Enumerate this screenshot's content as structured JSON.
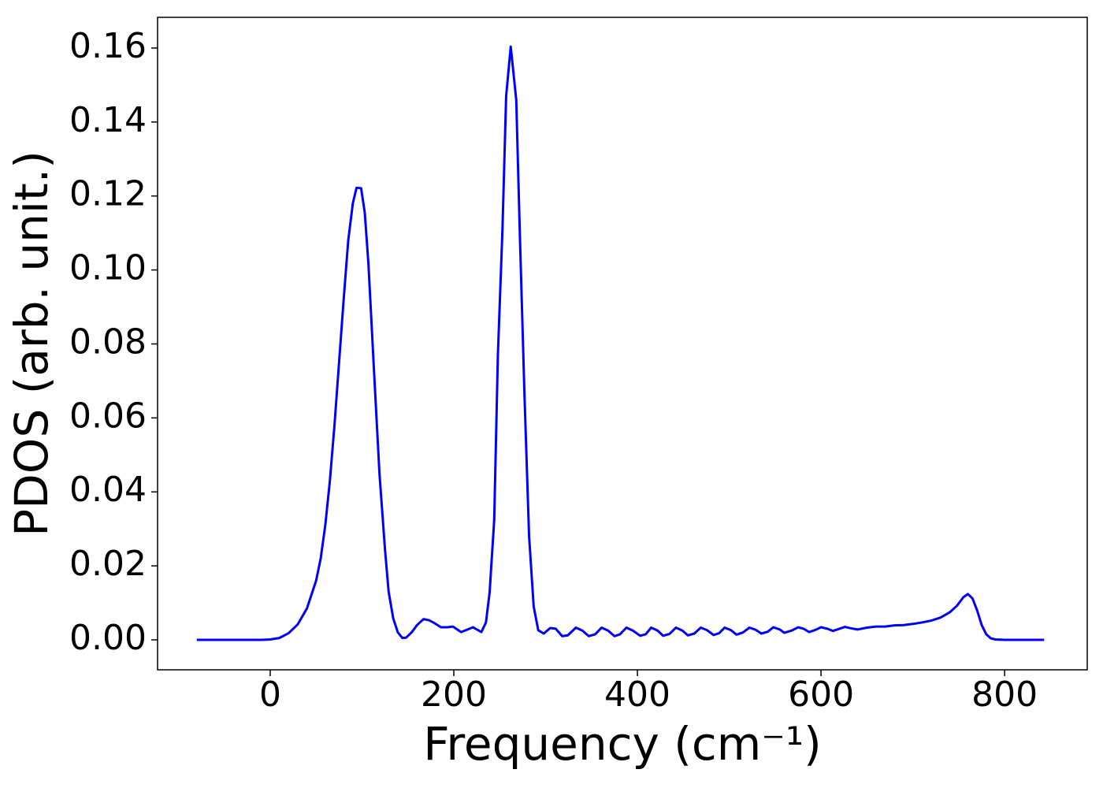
{
  "chart_data": {
    "type": "line",
    "xlabel": "Frequency (cm⁻¹)",
    "ylabel": "PDOS (arb. unit.)",
    "xlim": [
      -122.7,
      890
    ],
    "ylim": [
      -0.0081,
      0.1683
    ],
    "xticks": [
      0,
      200,
      400,
      600,
      800
    ],
    "yticks": [
      {
        "value": 0,
        "label": "0.00"
      },
      0.02,
      0.04,
      0.06,
      0.08,
      {
        "value": 0.1,
        "label": "0.10"
      },
      0.12,
      0.14,
      0.16
    ],
    "grid": false,
    "x": [
      -80,
      -60,
      -40,
      -20,
      -10,
      0,
      10,
      20,
      30,
      40,
      50,
      55,
      60,
      65,
      70,
      75,
      80,
      85,
      90,
      94,
      99,
      103,
      107,
      113,
      119,
      125,
      129,
      134,
      139,
      144,
      148,
      154,
      160,
      167,
      173,
      179,
      186,
      193,
      199,
      208,
      221,
      230,
      235,
      239,
      244,
      248,
      253,
      257,
      262,
      268,
      272,
      277,
      282,
      287,
      292,
      298,
      305,
      311,
      318,
      324,
      333,
      340,
      347,
      354,
      361,
      368,
      375,
      381,
      388,
      395,
      403,
      409,
      415,
      422,
      428,
      435,
      442,
      449,
      455,
      462,
      469,
      476,
      483,
      489,
      495,
      502,
      508,
      515,
      522,
      529,
      535,
      542,
      548,
      555,
      560,
      568,
      575,
      581,
      587,
      594,
      600,
      607,
      613,
      620,
      626,
      633,
      640,
      650,
      660,
      670,
      680,
      690,
      700,
      710,
      720,
      730,
      740,
      748,
      755,
      760,
      765,
      770,
      775,
      780,
      785,
      790,
      800,
      820,
      843
    ],
    "series": [
      {
        "color": "#0000ff",
        "values": [
          0,
          0,
          0,
          0,
          0,
          0.0001,
          0.0005,
          0.0018,
          0.0042,
          0.0085,
          0.016,
          0.022,
          0.031,
          0.043,
          0.058,
          0.075,
          0.092,
          0.108,
          0.118,
          0.1222,
          0.1221,
          0.1155,
          0.1016,
          0.073,
          0.045,
          0.0245,
          0.013,
          0.0058,
          0.002,
          0.0005,
          0.0006,
          0.002,
          0.004,
          0.0056,
          0.0053,
          0.0045,
          0.0034,
          0.0034,
          0.0036,
          0.0021,
          0.0034,
          0.0021,
          0.0047,
          0.0128,
          0.0324,
          0.077,
          0.111,
          0.147,
          0.1604,
          0.146,
          0.109,
          0.066,
          0.028,
          0.009,
          0.0026,
          0.0017,
          0.0032,
          0.003,
          0.001,
          0.0012,
          0.0033,
          0.0025,
          0.001,
          0.0015,
          0.0033,
          0.0025,
          0.001,
          0.0015,
          0.0033,
          0.0025,
          0.0011,
          0.0015,
          0.0033,
          0.0025,
          0.0011,
          0.0016,
          0.0033,
          0.0025,
          0.0012,
          0.0017,
          0.0033,
          0.0026,
          0.0013,
          0.0018,
          0.0033,
          0.0026,
          0.0014,
          0.002,
          0.0033,
          0.0027,
          0.0017,
          0.0022,
          0.0034,
          0.0028,
          0.0019,
          0.0025,
          0.0034,
          0.003,
          0.0021,
          0.0027,
          0.0034,
          0.003,
          0.0024,
          0.003,
          0.0035,
          0.0031,
          0.0028,
          0.0033,
          0.0036,
          0.0036,
          0.0039,
          0.004,
          0.0043,
          0.0047,
          0.0052,
          0.006,
          0.0074,
          0.0092,
          0.0115,
          0.0124,
          0.0112,
          0.008,
          0.004,
          0.0015,
          0.0004,
          0.0001,
          0,
          0,
          0
        ]
      }
    ]
  }
}
